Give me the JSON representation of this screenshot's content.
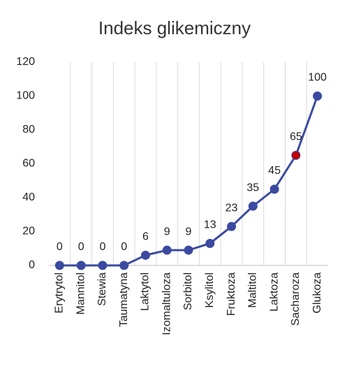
{
  "chart_data": {
    "type": "line",
    "title": "Indeks glikemiczny",
    "categories": [
      "Erytrytol",
      "Mannitol",
      "Stewia",
      "Taumatyna",
      "Laktytol",
      "Izomaltuloza",
      "Sorbitol",
      "Ksylitol",
      "Fruktoza",
      "Maltitol",
      "Laktoza",
      "Sacharoza",
      "Glukoza"
    ],
    "values": [
      0,
      0,
      0,
      0,
      6,
      9,
      9,
      13,
      23,
      35,
      45,
      65,
      100
    ],
    "color": "#3b4aa0",
    "marker_colors": [
      "#3b4aa0",
      "#3b4aa0",
      "#3b4aa0",
      "#3b4aa0",
      "#3b4aa0",
      "#3b4aa0",
      "#3b4aa0",
      "#3b4aa0",
      "#3b4aa0",
      "#3b4aa0",
      "#3b4aa0",
      "#c00000",
      "#3b4aa0"
    ],
    "ylim": [
      0,
      120
    ],
    "yticks": [
      0,
      20,
      40,
      60,
      80,
      100,
      120
    ],
    "grid": "x"
  }
}
